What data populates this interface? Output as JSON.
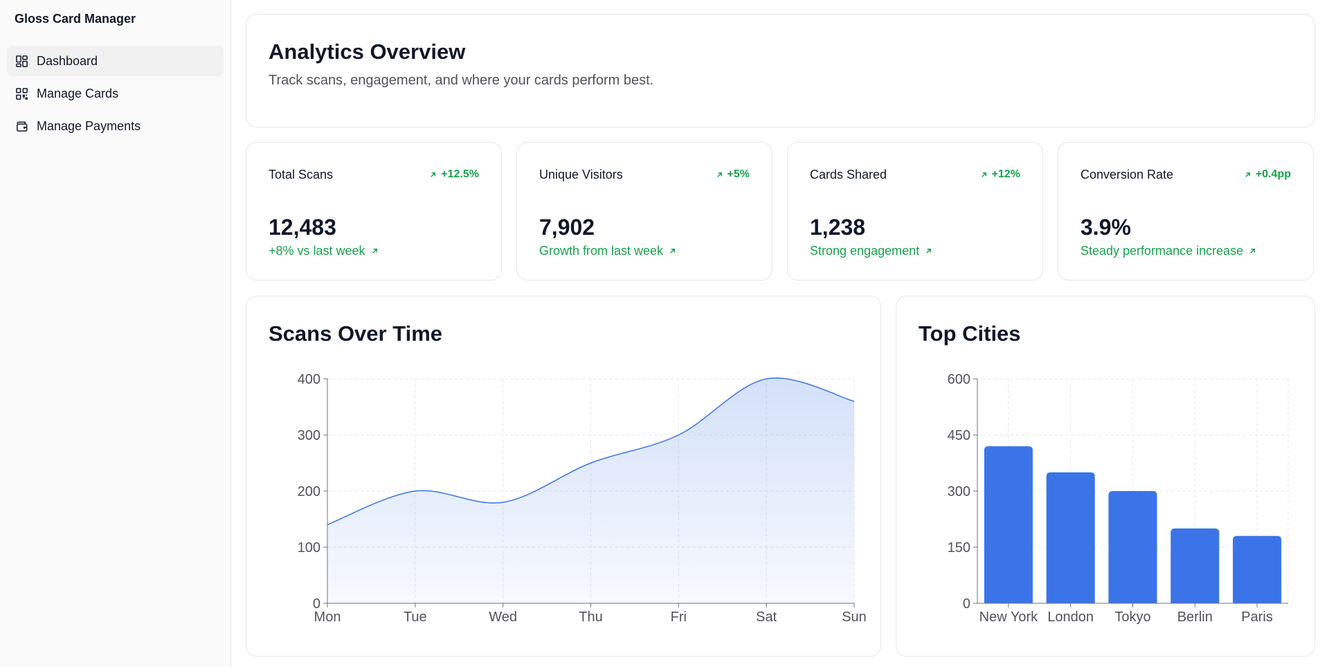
{
  "app": {
    "title": "Gloss Card Manager"
  },
  "sidebar": {
    "items": [
      {
        "label": "Dashboard",
        "icon": "dashboard-icon",
        "active": true
      },
      {
        "label": "Manage Cards",
        "icon": "qr-code-icon",
        "active": false
      },
      {
        "label": "Manage Payments",
        "icon": "wallet-icon",
        "active": false
      }
    ]
  },
  "header": {
    "title": "Analytics Overview",
    "subtitle": "Track scans, engagement, and where your cards perform best."
  },
  "stats": [
    {
      "label": "Total Scans",
      "badge": "+12.5%",
      "value": "12,483",
      "foot": "+8% vs last week"
    },
    {
      "label": "Unique Visitors",
      "badge": "+5%",
      "value": "7,902",
      "foot": "Growth from last week"
    },
    {
      "label": "Cards Shared",
      "badge": "+12%",
      "value": "1,238",
      "foot": "Strong engagement"
    },
    {
      "label": "Conversion Rate",
      "badge": "+0.4pp",
      "value": "3.9%",
      "foot": "Steady performance increase"
    }
  ],
  "colors": {
    "accent": "#3b74e8",
    "positive": "#16a34a"
  },
  "chart_data": [
    {
      "type": "area",
      "title": "Scans Over Time",
      "categories": [
        "Mon",
        "Tue",
        "Wed",
        "Thu",
        "Fri",
        "Sat",
        "Sun"
      ],
      "values": [
        140,
        200,
        180,
        250,
        300,
        400,
        360
      ],
      "ylim": [
        0,
        400
      ],
      "yticks": [
        0,
        100,
        200,
        300,
        400
      ],
      "grid": true
    },
    {
      "type": "bar",
      "title": "Top Cities",
      "categories": [
        "New York",
        "London",
        "Tokyo",
        "Berlin",
        "Paris"
      ],
      "values": [
        420,
        350,
        300,
        200,
        180
      ],
      "ylim": [
        0,
        600
      ],
      "yticks": [
        0,
        150,
        300,
        450,
        600
      ],
      "grid": true
    }
  ]
}
